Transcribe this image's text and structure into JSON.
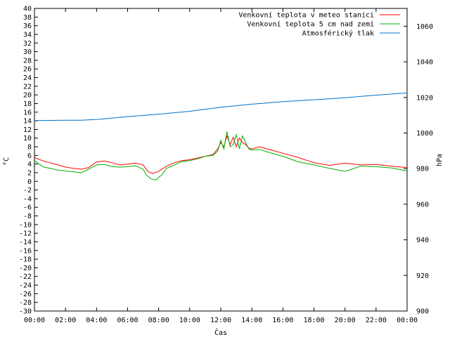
{
  "chart_data": {
    "type": "line",
    "xlabel": "Čas",
    "ylabel_left": "°C",
    "ylabel_right": "hPa",
    "x_ticks": [
      "00:00",
      "02:00",
      "04:00",
      "06:00",
      "08:00",
      "10:00",
      "12:00",
      "14:00",
      "16:00",
      "18:00",
      "20:00",
      "22:00",
      "00:00"
    ],
    "xlim_hours": [
      0,
      24
    ],
    "ylim_left": [
      -30,
      40
    ],
    "y_left_step": 2,
    "ylim_right": [
      900,
      1070
    ],
    "y_right_ticks": [
      900,
      920,
      940,
      960,
      980,
      1000,
      1020,
      1040,
      1060
    ],
    "legend_position": "top-right",
    "series": [
      {
        "name": "Venkovní teplota v meteo stanici",
        "color": "#ff0000",
        "axis": "left",
        "x": [
          0,
          0.5,
          1,
          1.5,
          2,
          2.5,
          3,
          3.5,
          4,
          4.5,
          5,
          5.5,
          6,
          6.5,
          7,
          7.3,
          7.6,
          8,
          8.5,
          9,
          9.5,
          10,
          10.5,
          11,
          11.5,
          11.8,
          12,
          12.2,
          12.4,
          12.6,
          12.8,
          13,
          13.2,
          13.4,
          13.6,
          13.8,
          14,
          14.5,
          15,
          16,
          17,
          18,
          19,
          20,
          21,
          22,
          23,
          24
        ],
        "values": [
          5.5,
          4.8,
          4.3,
          3.8,
          3.3,
          3.0,
          2.8,
          3.2,
          4.5,
          4.7,
          4.3,
          3.8,
          4.0,
          4.2,
          3.8,
          2.3,
          1.8,
          2.3,
          3.5,
          4.3,
          4.8,
          5.0,
          5.4,
          5.8,
          6.2,
          7.5,
          9.0,
          8.0,
          10.5,
          8.5,
          10.2,
          8.0,
          10.0,
          9.0,
          8.5,
          7.7,
          7.5,
          8.0,
          7.5,
          6.5,
          5.5,
          4.3,
          3.7,
          4.2,
          3.8,
          3.9,
          3.5,
          3.2
        ]
      },
      {
        "name": "Venkovní teplota 5 cm nad zemí",
        "color": "#00b000",
        "axis": "left",
        "x": [
          0,
          0.3,
          0.6,
          1,
          1.5,
          2,
          2.5,
          3,
          3.5,
          4,
          4.5,
          5,
          5.5,
          6,
          6.5,
          7,
          7.2,
          7.5,
          7.8,
          8.2,
          8.5,
          9,
          9.5,
          10,
          10.5,
          11,
          11.5,
          11.8,
          12,
          12.2,
          12.4,
          12.6,
          12.8,
          13,
          13.2,
          13.4,
          13.6,
          13.8,
          14,
          14.5,
          15,
          16,
          17,
          18,
          19,
          20,
          21,
          22,
          23,
          24
        ],
        "values": [
          4.8,
          4.0,
          3.3,
          3.0,
          2.6,
          2.4,
          2.2,
          2.0,
          2.8,
          3.8,
          3.9,
          3.4,
          3.3,
          3.4,
          3.6,
          2.8,
          1.5,
          0.6,
          0.3,
          1.5,
          3.0,
          3.8,
          4.6,
          4.8,
          5.2,
          5.8,
          6.0,
          7.0,
          9.5,
          7.5,
          11.5,
          8.0,
          8.5,
          10.8,
          7.5,
          10.5,
          9.0,
          7.5,
          7.2,
          7.4,
          6.8,
          5.8,
          4.5,
          3.8,
          3.0,
          2.3,
          3.5,
          3.4,
          3.1,
          2.4
        ]
      },
      {
        "name": "Atmosférický tlak",
        "color": "#0070c8",
        "axis": "right",
        "x": [
          0,
          2,
          3,
          4,
          6,
          8,
          10,
          12,
          14,
          16,
          18,
          20,
          22,
          24
        ],
        "values": [
          1007,
          1007.2,
          1007.2,
          1007.6,
          1009.2,
          1010.6,
          1012.2,
          1014.5,
          1016.2,
          1017.6,
          1018.7,
          1019.8,
          1021.3,
          1022.5
        ]
      }
    ]
  }
}
